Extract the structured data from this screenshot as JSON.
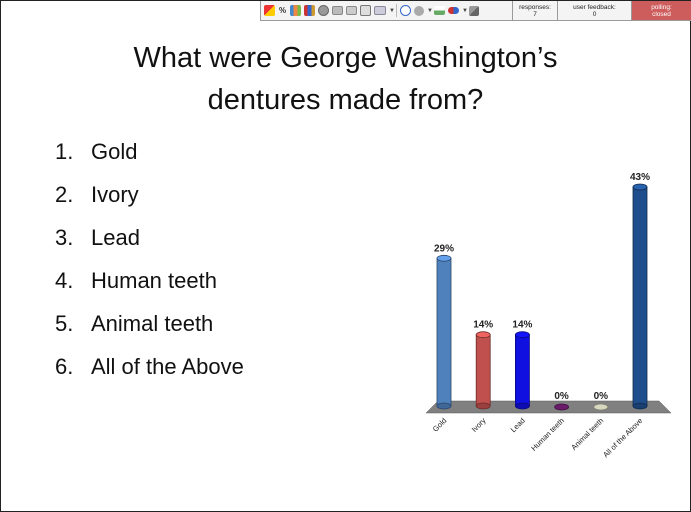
{
  "question": {
    "title_line1": "What were George Washington’s",
    "title_line2": "dentures made from?"
  },
  "answers": [
    {
      "num": "1.",
      "label": "Gold"
    },
    {
      "num": "2.",
      "label": "Ivory"
    },
    {
      "num": "3.",
      "label": "Lead"
    },
    {
      "num": "4.",
      "label": "Human teeth"
    },
    {
      "num": "5.",
      "label": "Animal teeth"
    },
    {
      "num": "6.",
      "label": "All of the Above"
    }
  ],
  "toolbar": {
    "percent_glyph": "%",
    "icons": [
      "results-icon",
      "percent-icon",
      "chart-type-icon",
      "bar-chart-icon",
      "countdown-icon",
      "correct-answer-icon",
      "slide-icon",
      "insert-icon",
      "options-icon",
      "info-icon",
      "participant-icon",
      "show-results-icon",
      "flag-icon",
      "wizard-icon"
    ],
    "responses_label": "responses:",
    "responses_value": "7",
    "feedback_label": "user feedback:",
    "feedback_value": "0",
    "polling_label": "polling:",
    "polling_value": "closed",
    "polling_color": "#cd5c5c"
  },
  "chart_data": {
    "type": "bar",
    "categories": [
      "Gold",
      "Ivory",
      "Lead",
      "Human teeth",
      "Animal teeth",
      "All of the Above"
    ],
    "values": [
      29,
      14,
      14,
      0,
      0,
      43
    ],
    "data_labels": [
      "29%",
      "14%",
      "14%",
      "0%",
      "0%",
      "43%"
    ],
    "colors": [
      "#4f81bd",
      "#c0504d",
      "#1010e0",
      "#6a1b6a",
      "#d8d8c0",
      "#1f4e8c"
    ],
    "floor_color": "#808080",
    "ylim": [
      0,
      43
    ],
    "grid": false,
    "legend": "none"
  }
}
